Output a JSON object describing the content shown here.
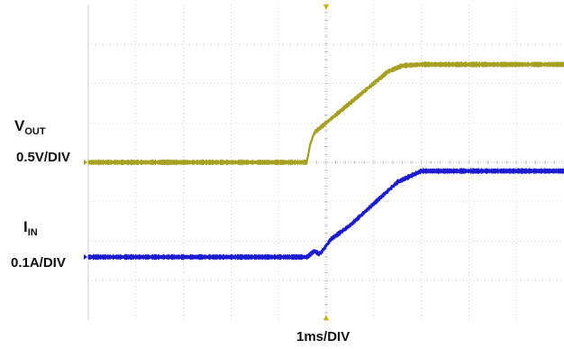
{
  "chart_data": {
    "type": "line",
    "grid": true,
    "divisions": {
      "x": 10,
      "y": 8
    },
    "x_scale_label": "1ms/DIV",
    "series": [
      {
        "name": "VOUT",
        "label_main": "V",
        "label_sub": "OUT",
        "scale_label": "0.5V/DIV",
        "color": "#a8a022",
        "x_div": [
          0,
          4.6,
          4.65,
          4.75,
          5.0,
          5.5,
          6.0,
          6.3,
          6.6,
          7.0,
          10
        ],
        "y_div": [
          4.0,
          4.0,
          4.4,
          4.75,
          5.0,
          5.5,
          6.0,
          6.3,
          6.45,
          6.48,
          6.48
        ]
      },
      {
        "name": "IIN",
        "label_main": "I",
        "label_sub": "IN",
        "scale_label": "0.1A/DIV",
        "color": "#1b1bd0",
        "x_div": [
          0,
          4.6,
          4.75,
          4.85,
          4.9,
          5.1,
          5.5,
          6.0,
          6.5,
          7.0,
          10
        ],
        "y_div": [
          1.6,
          1.6,
          1.75,
          1.68,
          1.72,
          2.05,
          2.4,
          2.95,
          3.5,
          3.78,
          3.78
        ]
      }
    ]
  }
}
